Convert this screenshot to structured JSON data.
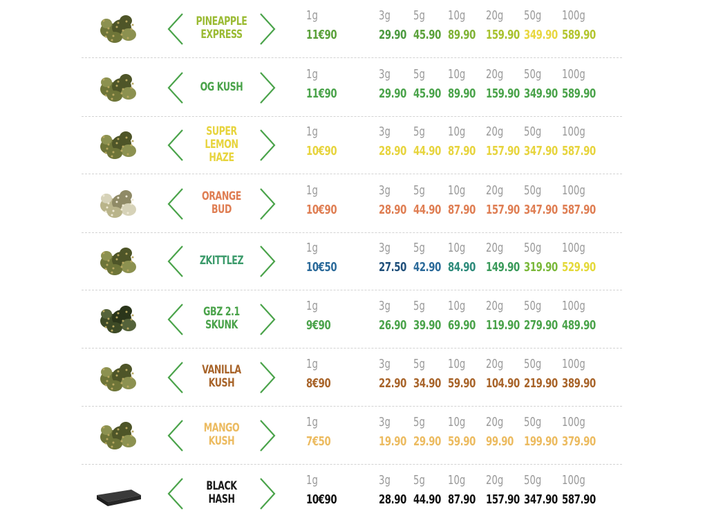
{
  "weights": [
    "1g",
    "3g",
    "5g",
    "10g",
    "20g",
    "50g",
    "100g"
  ],
  "products": [
    {
      "name_lines": [
        "PINEAPPLE",
        "EXPRESS"
      ],
      "name_color": "#9bbb34",
      "prices": [
        "11€90",
        "29.90",
        "45.90",
        "89.90",
        "159.90",
        "349.90",
        "589.90"
      ],
      "colors": [
        "#5aa13a",
        "#4b9a3f",
        "#5aa13a",
        "#7fb235",
        "#a8c22e",
        "#e8d740",
        "#b3c52f"
      ],
      "bud": "bud"
    },
    {
      "name_lines": [
        "OG KUSH"
      ],
      "name_color": "#4aa34a",
      "prices": [
        "11€90",
        "29.90",
        "45.90",
        "89.90",
        "159.90",
        "349.90",
        "589.90"
      ],
      "colors": [
        "#4aa34a",
        "#4aa34a",
        "#4aa34a",
        "#4aa34a",
        "#4aa34a",
        "#4aa34a",
        "#4aa34a"
      ],
      "bud": "bud"
    },
    {
      "name_lines": [
        "SUPER LEMON",
        "HAZE"
      ],
      "name_color": "#e7d43d",
      "prices": [
        "10€90",
        "28.90",
        "44.90",
        "87.90",
        "157.90",
        "347.90",
        "587.90"
      ],
      "colors": [
        "#e7d43d",
        "#e7d43d",
        "#e7d43d",
        "#e7d43d",
        "#e7d43d",
        "#e7d43d",
        "#e7d43d"
      ],
      "bud": "bud"
    },
    {
      "name_lines": [
        "ORANGE",
        "BUD"
      ],
      "name_color": "#df7e53",
      "prices": [
        "10€90",
        "28.90",
        "44.90",
        "87.90",
        "157.90",
        "347.90",
        "587.90"
      ],
      "colors": [
        "#df7e53",
        "#df7e53",
        "#df7e53",
        "#df7e53",
        "#df7e53",
        "#df7e53",
        "#df7e53"
      ],
      "bud": "bud-light"
    },
    {
      "name_lines": [
        "ZKITTLEZ"
      ],
      "name_color": "#3a9a6a",
      "prices": [
        "10€50",
        "27.50",
        "42.90",
        "84.90",
        "149.90",
        "319.90",
        "529.90"
      ],
      "colors": [
        "#2b6a9a",
        "#1f4f7a",
        "#2b6a9a",
        "#2c8a7a",
        "#3a9a5a",
        "#7ab83a",
        "#e4d93a"
      ],
      "bud": "bud"
    },
    {
      "name_lines": [
        "GBZ 2.1",
        "SKUNK"
      ],
      "name_color": "#4aa34a",
      "prices": [
        "9€90",
        "26.90",
        "39.90",
        "69.90",
        "119.90",
        "279.90",
        "489.90"
      ],
      "colors": [
        "#4aa34a",
        "#4aa34a",
        "#4aa34a",
        "#4aa34a",
        "#4aa34a",
        "#4aa34a",
        "#4aa34a"
      ],
      "bud": "bud-dark"
    },
    {
      "name_lines": [
        "VANILLA",
        "KUSH"
      ],
      "name_color": "#a8642a",
      "prices": [
        "8€90",
        "22.90",
        "34.90",
        "59.90",
        "104.90",
        "219.90",
        "389.90"
      ],
      "colors": [
        "#a8642a",
        "#a8642a",
        "#a8642a",
        "#a8642a",
        "#a8642a",
        "#a8642a",
        "#a8642a"
      ],
      "bud": "bud"
    },
    {
      "name_lines": [
        "MANGO",
        "KUSH"
      ],
      "name_color": "#ecbb60",
      "prices": [
        "7€50",
        "19.90",
        "29.90",
        "59.90",
        "99.90",
        "199.90",
        "379.90"
      ],
      "colors": [
        "#ecbb60",
        "#ecbb60",
        "#ecbb60",
        "#ecbb60",
        "#ecbb60",
        "#ecbb60",
        "#ecbb60"
      ],
      "bud": "bud"
    },
    {
      "name_lines": [
        "BLACK",
        "HASH"
      ],
      "name_color": "#1a1a1a",
      "prices": [
        "10€90",
        "28.90",
        "44.90",
        "87.90",
        "157.90",
        "347.90",
        "587.90"
      ],
      "colors": [
        "#111111",
        "#111111",
        "#111111",
        "#111111",
        "#111111",
        "#111111",
        "#111111"
      ],
      "bud": "hash"
    }
  ],
  "arrow_color": "#4aa34a"
}
